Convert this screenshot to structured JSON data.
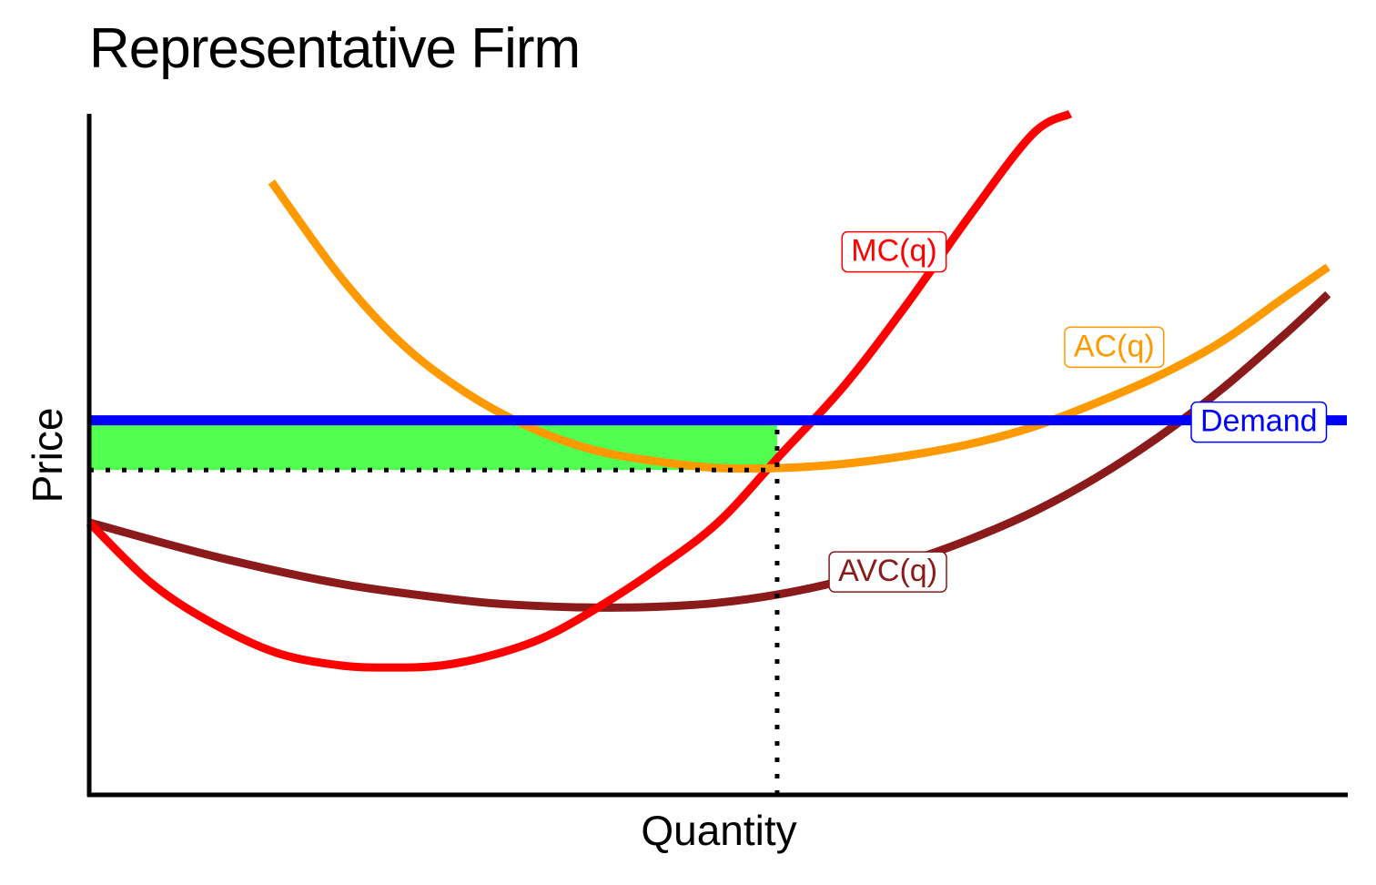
{
  "chart_data": {
    "type": "line",
    "title": "Representative Firm",
    "xlabel": "Quantity",
    "ylabel": "Price",
    "xlim": [
      0,
      10
    ],
    "ylim": [
      0,
      10
    ],
    "grid": false,
    "show_ticks": false,
    "series": [
      {
        "name": "MC(q)",
        "color": "#FF0000",
        "x": [
          0,
          0.5,
          1,
          1.5,
          2,
          2.4,
          2.8,
          3.2,
          3.6,
          4,
          4.5,
          5,
          5.5,
          6,
          6.5,
          7,
          7.5,
          7.8
        ],
        "y": [
          4.0,
          3.1,
          2.5,
          2.08,
          1.9,
          1.87,
          1.9,
          2.05,
          2.3,
          2.7,
          3.3,
          4.0,
          5.0,
          6.0,
          7.2,
          8.5,
          9.7,
          10.0
        ]
      },
      {
        "name": "AC(q)",
        "color": "#FF9900",
        "x": [
          1.45,
          2,
          2.5,
          3,
          3.5,
          4,
          4.5,
          5,
          5.5,
          6,
          6.5,
          7,
          7.5,
          8,
          8.5,
          9,
          9.5,
          9.85
        ],
        "y": [
          9.0,
          7.6,
          6.6,
          5.9,
          5.4,
          5.07,
          4.9,
          4.8,
          4.8,
          4.86,
          4.98,
          5.15,
          5.4,
          5.75,
          6.15,
          6.65,
          7.3,
          7.75
        ]
      },
      {
        "name": "AVC(q)",
        "color": "#8B1A1A",
        "x": [
          0,
          1,
          2,
          3,
          3.5,
          4,
          4.5,
          5,
          5.5,
          6,
          6.5,
          7,
          7.5,
          8,
          8.5,
          9,
          9.5,
          9.85
        ],
        "y": [
          4.0,
          3.5,
          3.1,
          2.85,
          2.78,
          2.75,
          2.76,
          2.82,
          2.95,
          3.15,
          3.42,
          3.75,
          4.15,
          4.65,
          5.25,
          5.95,
          6.75,
          7.35
        ]
      },
      {
        "name": "Demand",
        "color": "#0000FF",
        "x": [
          0,
          10
        ],
        "y": [
          5.5,
          5.5
        ]
      }
    ],
    "shaded_region": {
      "x": [
        0,
        5.47
      ],
      "y": [
        4.77,
        5.5
      ],
      "color": "#33FF33"
    },
    "reference_lines": [
      {
        "orientation": "horizontal",
        "value": 4.77,
        "from": 0,
        "to": 5.47,
        "style": "dotted"
      },
      {
        "orientation": "vertical",
        "value": 5.47,
        "from": 0,
        "to": 5.5,
        "style": "dotted"
      }
    ],
    "labels": [
      {
        "text": "MC(q)",
        "series": "MC(q)",
        "x": 6.4,
        "y": 8.0
      },
      {
        "text": "AC(q)",
        "series": "AC(q)",
        "x": 8.15,
        "y": 6.6
      },
      {
        "text": "AVC(q)",
        "series": "AVC(q)",
        "x": 6.35,
        "y": 3.3
      },
      {
        "text": "Demand",
        "series": "Demand",
        "x": 9.3,
        "y": 5.5
      }
    ]
  }
}
